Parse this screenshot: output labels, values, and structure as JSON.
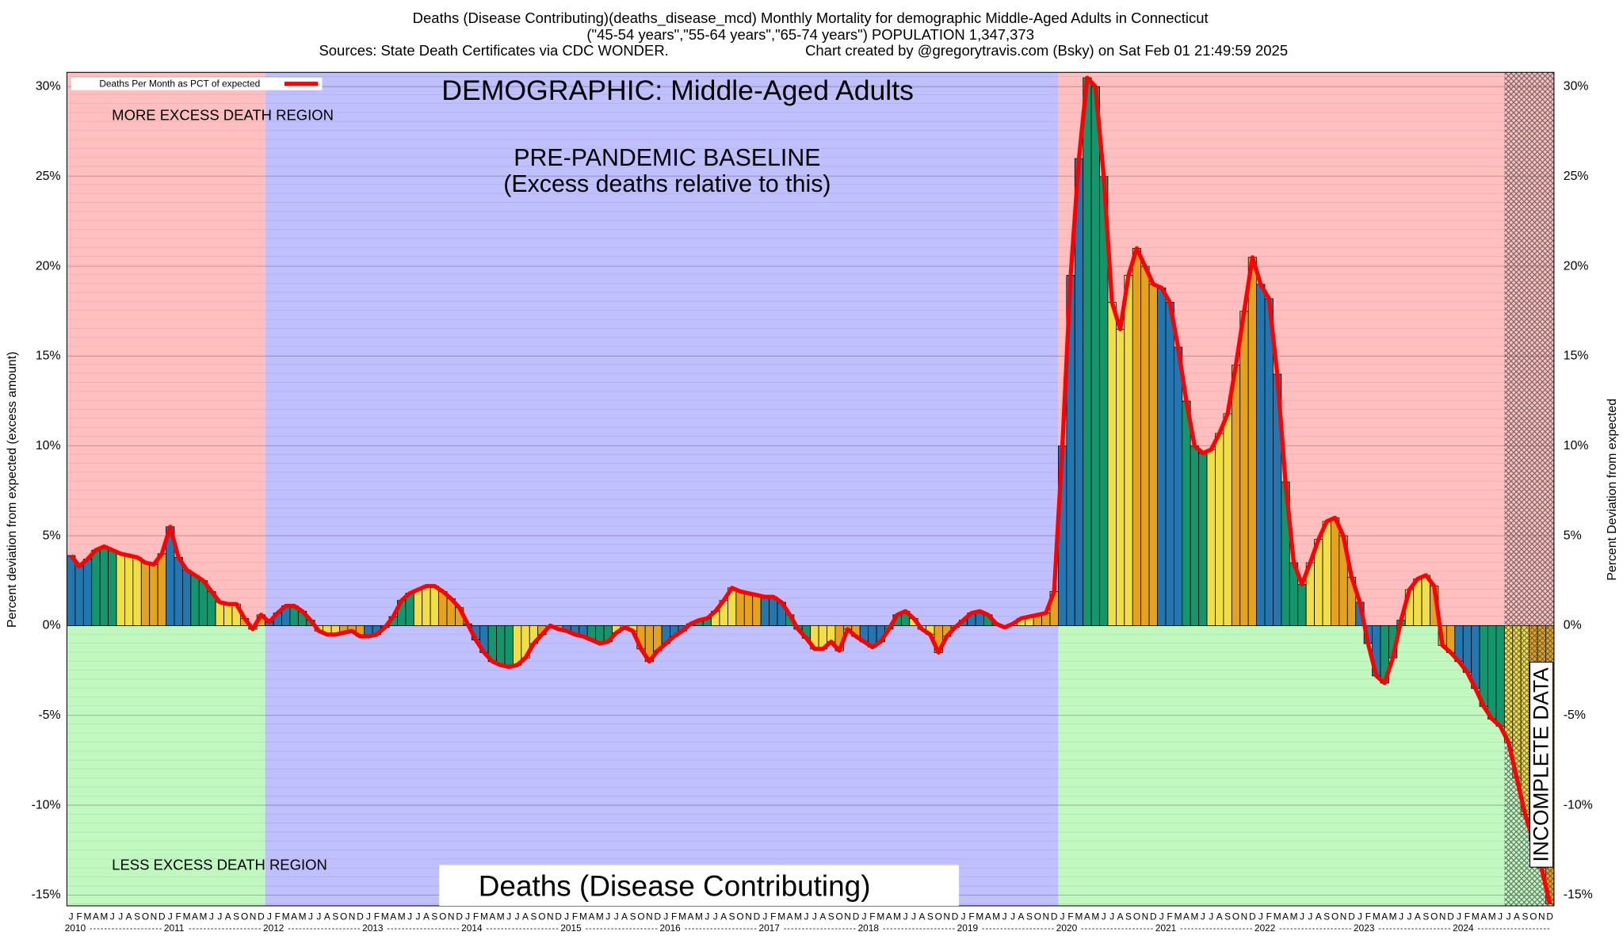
{
  "chart_data": {
    "type": "bar",
    "title": "Deaths (Disease Contributing)(deaths_disease_mcd) Monthly Mortality for demographic Middle-Aged Adults in Connecticut",
    "subtitle": "(\"45-54 years\",\"55-64 years\",\"65-74 years\") POPULATION 1,347,373",
    "source": "Sources: State Death Certificates via CDC WONDER.",
    "credit": "Chart created by @gregorytravis.com (Bsky) on Sat Feb 01 21:49:59 2025",
    "y_label": "Percent deviation from expected (excess amount)",
    "y2_label": "Percent Deviation from expected",
    "annotations": {
      "demographic": "DEMOGRAPHIC: Middle-Aged Adults",
      "more": "MORE EXCESS DEATH REGION",
      "baseline": "PRE-PANDEMIC BASELINE",
      "baseline_note": "(Excess deaths relative to this)",
      "less": "LESS EXCESS DEATH REGION",
      "footer": "Deaths (Disease Contributing)",
      "incomplete": "INCOMPLETE DATA"
    },
    "years": [
      "2010",
      "2011",
      "2012",
      "2013",
      "2014",
      "2015",
      "2016",
      "2017",
      "2018",
      "2019",
      "2020",
      "2021",
      "2022",
      "2023",
      "2024"
    ],
    "categories": [
      "J",
      "F",
      "M",
      "A",
      "M",
      "J",
      "J",
      "A",
      "S",
      "O",
      "N",
      "D",
      "J",
      "F",
      "M",
      "A",
      "M",
      "J",
      "J",
      "A",
      "S",
      "O",
      "N",
      "D",
      "J",
      "F",
      "M",
      "A",
      "M",
      "J",
      "J",
      "A",
      "S",
      "O",
      "N",
      "D",
      "J",
      "F",
      "M",
      "A",
      "M",
      "J",
      "J",
      "A",
      "S",
      "O",
      "N",
      "D",
      "J",
      "F",
      "M",
      "A",
      "M",
      "J",
      "J",
      "A",
      "S",
      "O",
      "N",
      "D",
      "J",
      "F",
      "M",
      "A",
      "M",
      "J",
      "J",
      "A",
      "S",
      "O",
      "N",
      "D",
      "J",
      "F",
      "M",
      "A",
      "M",
      "J",
      "J",
      "A",
      "S",
      "O",
      "N",
      "D",
      "J",
      "F",
      "M",
      "A",
      "M",
      "J",
      "J",
      "A",
      "S",
      "O",
      "N",
      "D",
      "J",
      "F",
      "M",
      "A",
      "M",
      "J",
      "J",
      "A",
      "S",
      "O",
      "N",
      "D",
      "J",
      "F",
      "M",
      "A",
      "M",
      "J",
      "J",
      "A",
      "S",
      "O",
      "N",
      "D",
      "J",
      "F",
      "M",
      "A",
      "M",
      "J",
      "J",
      "A",
      "S",
      "O",
      "N",
      "D",
      "J",
      "F",
      "M",
      "A",
      "M",
      "J",
      "J",
      "A",
      "S",
      "O",
      "N",
      "D",
      "J",
      "F",
      "M",
      "A",
      "M",
      "J",
      "J",
      "A",
      "S",
      "O",
      "N",
      "D",
      "J",
      "F",
      "M",
      "A",
      "M",
      "J",
      "J",
      "A",
      "S",
      "O",
      "N",
      "D",
      "J",
      "F",
      "M",
      "A",
      "M",
      "J",
      "J",
      "A",
      "S",
      "O",
      "N",
      "D"
    ],
    "series": [
      {
        "name": "Deaths Per Month as PCT of expected",
        "color": "#ff0000",
        "values": [
          3.9,
          3.3,
          3.7,
          4.2,
          4.4,
          4.2,
          4.0,
          3.9,
          3.8,
          3.5,
          3.4,
          4.0,
          5.5,
          3.8,
          3.1,
          2.8,
          2.5,
          1.9,
          1.3,
          1.2,
          1.2,
          0.4,
          -0.2,
          0.6,
          0.2,
          0.7,
          1.1,
          1.1,
          0.8,
          0.3,
          -0.3,
          -0.5,
          -0.5,
          -0.4,
          -0.3,
          -0.6,
          -0.6,
          -0.5,
          -0.1,
          0.5,
          1.4,
          1.8,
          2.0,
          2.2,
          2.2,
          1.9,
          1.5,
          1.0,
          0.1,
          -0.8,
          -1.5,
          -2.0,
          -2.2,
          -2.3,
          -2.2,
          -1.8,
          -1.0,
          -0.5,
          0.0,
          -0.2,
          -0.3,
          -0.5,
          -0.6,
          -0.8,
          -1.0,
          -0.9,
          -0.4,
          -0.1,
          -0.3,
          -1.3,
          -2.0,
          -1.4,
          -1.0,
          -0.6,
          -0.3,
          0.1,
          0.3,
          0.4,
          0.8,
          1.4,
          2.1,
          1.9,
          1.8,
          1.7,
          1.6,
          1.6,
          1.3,
          0.6,
          -0.2,
          -0.7,
          -1.3,
          -1.3,
          -0.9,
          -1.4,
          -0.2,
          -0.6,
          -0.9,
          -1.2,
          -0.9,
          -0.2,
          0.6,
          0.8,
          0.4,
          -0.2,
          -0.5,
          -1.5,
          -0.6,
          -0.1,
          0.3,
          0.7,
          0.8,
          0.6,
          0.1,
          -0.1,
          0.1,
          0.4,
          0.5,
          0.6,
          0.7,
          1.9,
          10.0,
          19.5,
          26.0,
          30.5,
          30.0,
          25.0,
          18.0,
          16.5,
          19.5,
          21.0,
          20.0,
          19.0,
          18.8,
          18.0,
          15.5,
          12.5,
          10.0,
          9.6,
          9.8,
          10.7,
          11.8,
          14.5,
          17.5,
          20.5,
          19.0,
          18.2,
          14.0,
          8.0,
          3.5,
          2.3,
          3.5,
          4.8,
          5.8,
          6.0,
          5.0,
          2.7,
          1.3,
          -1.0,
          -2.8,
          -3.2,
          -1.8,
          0.3,
          2.0,
          2.6,
          2.8,
          2.2,
          -1.1,
          -1.5,
          -2.0,
          -2.6,
          -3.5,
          -4.5,
          -5.2,
          -5.6,
          -6.5,
          -8.5,
          -10.5,
          -12.0,
          -13.5,
          -15.5
        ]
      }
    ],
    "bar_colors": [
      "#2277b0",
      "#13966b",
      "#f1df45",
      "#e5a21c"
    ],
    "ylim": [
      -15.6,
      30.8
    ],
    "yticks": [
      {
        "value": -15,
        "label": "-15%"
      },
      {
        "value": -10,
        "label": "-10%"
      },
      {
        "value": -5,
        "label": "-5%"
      },
      {
        "value": 0,
        "label": "0%"
      },
      {
        "value": 5,
        "label": "5%"
      },
      {
        "value": 10,
        "label": "10%"
      },
      {
        "value": 15,
        "label": "15%"
      },
      {
        "value": 20,
        "label": "20%"
      },
      {
        "value": 25,
        "label": "25%"
      },
      {
        "value": 30,
        "label": "30%"
      }
    ],
    "grid": true
  }
}
